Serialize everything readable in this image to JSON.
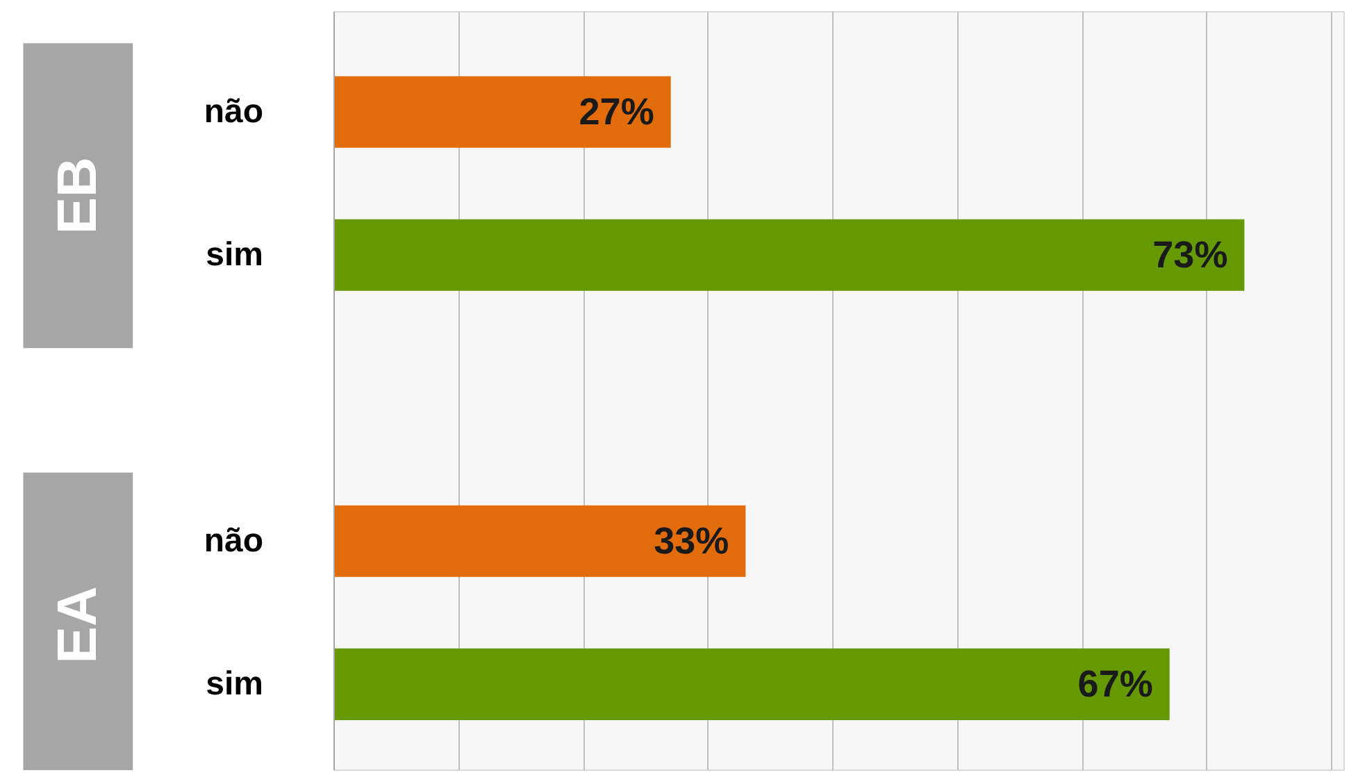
{
  "chart_data": {
    "type": "bar",
    "orientation": "horizontal",
    "categories": [
      "não",
      "sim",
      null,
      "não",
      "sim"
    ],
    "values": [
      27,
      73,
      null,
      33,
      67
    ],
    "colors": [
      "#e36c0a",
      "#669900",
      null,
      "#e36c0a",
      "#669900"
    ],
    "xlim": [
      0,
      81
    ],
    "xticks": [
      {
        "value": 0,
        "label": null
      },
      {
        "value": 10,
        "label": null
      },
      {
        "value": 20,
        "label": null
      },
      {
        "value": 30,
        "label": null
      },
      {
        "value": 40,
        "label": null
      },
      {
        "value": 50,
        "label": null
      },
      {
        "value": 60,
        "label": null
      },
      {
        "value": 70,
        "label": null
      },
      {
        "value": 80,
        "label": null
      }
    ],
    "value_labels": [
      "27%",
      "73%",
      null,
      "33%",
      "67%"
    ],
    "annotations": [
      "EB",
      "EA"
    ],
    "grid": "x",
    "tick_labels": "y"
  }
}
